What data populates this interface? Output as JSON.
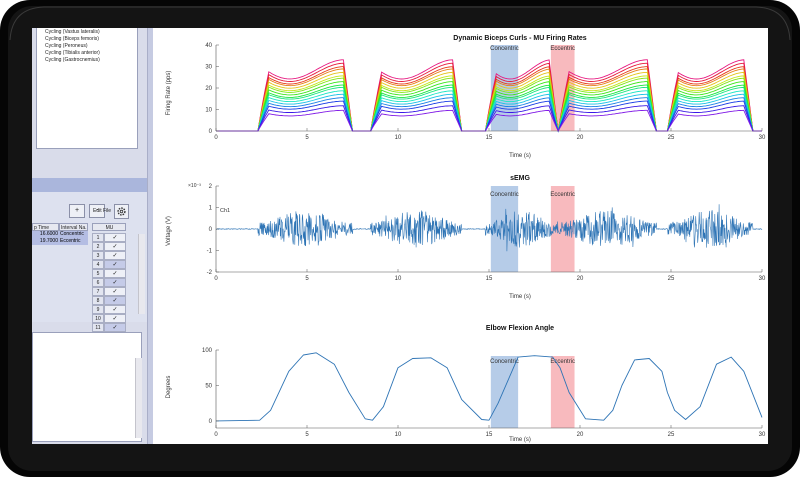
{
  "colors": {
    "frame": "#0a0a0a",
    "left_panel": "#d9dcea",
    "toolbar": "#aab6dc",
    "signal_line": "#2e74b5",
    "concentric_band": "#9dbbe0",
    "eccentric_band": "#f5a3a8"
  },
  "left_panel": {
    "list_items": [
      "Cycling (Vastus lateralis)",
      "Cycling (Biceps femoris)",
      "Cycling (Peroneus)",
      "Cycling (Tibialis anterior)",
      "Cycling (Gastrocnemius)"
    ],
    "add_label": "+",
    "remove_label": "-",
    "edit_file_label": "Edit File",
    "gear_icon": "gear-icon",
    "table": {
      "headers": [
        "p Time",
        "Interval Na..."
      ],
      "rows": [
        [
          "16.6000",
          "Concentric"
        ],
        [
          "19.7000",
          "Eccentric"
        ]
      ]
    },
    "mu_header": "MU",
    "mu_rows": [
      "1",
      "2",
      "3",
      "4",
      "5",
      "6",
      "7",
      "8",
      "9",
      "10",
      "11"
    ],
    "check_mark": "✓"
  },
  "chart_data": [
    {
      "type": "line",
      "title": "Dynamic Biceps Curls - MU Firing Rates",
      "xlabel": "Time (s)",
      "ylabel": "Firing Rate (pps)",
      "xlim": [
        0,
        30
      ],
      "ylim": [
        0,
        40
      ],
      "xticks": [
        "0",
        "5",
        "10",
        "15",
        "20",
        "25",
        "30"
      ],
      "yticks": [
        "0",
        "10",
        "20",
        "30",
        "40"
      ],
      "num_units": 16,
      "series_peak_rates": [
        31,
        29.5,
        28,
        27,
        25.5,
        24,
        23,
        21.5,
        20,
        19,
        17.5,
        16,
        14.5,
        13,
        11,
        9
      ],
      "activity_bursts": [
        [
          2.3,
          7.5
        ],
        [
          8.5,
          13.5
        ],
        [
          14.8,
          18.8
        ],
        [
          18.8,
          24.2
        ],
        [
          24.8,
          29.5
        ]
      ],
      "annotations": [
        {
          "label": "Concentric",
          "x_start": 15.1,
          "x_end": 16.6
        },
        {
          "label": "Eccentric",
          "x_start": 18.4,
          "x_end": 19.7
        }
      ]
    },
    {
      "type": "line",
      "title": "sEMG",
      "xlabel": "Time (s)",
      "ylabel": "Voltage (V)",
      "xlim": [
        0,
        30
      ],
      "ylim": [
        -2,
        2
      ],
      "scale_label": "×10⁻³",
      "xticks": [
        "0",
        "5",
        "10",
        "15",
        "20",
        "25",
        "30"
      ],
      "yticks": [
        "-2",
        "-1",
        "0",
        "1",
        "2"
      ],
      "series": [
        {
          "name": "Ch1",
          "peak_amplitude": 1.6
        }
      ],
      "activity_bursts": [
        [
          2.3,
          7.5
        ],
        [
          8.5,
          13.5
        ],
        [
          14.8,
          18.8
        ],
        [
          18.8,
          24.2
        ],
        [
          24.8,
          29.5
        ]
      ],
      "annotations": [
        {
          "label": "Concentric",
          "x_start": 15.1,
          "x_end": 16.6
        },
        {
          "label": "Eccentric",
          "x_start": 18.4,
          "x_end": 19.7
        }
      ]
    },
    {
      "type": "line",
      "title": "Elbow Flexion Angle",
      "xlabel": "Time (s)",
      "ylabel": "Degrees",
      "xlim": [
        0,
        30
      ],
      "ylim": [
        -10,
        100
      ],
      "xticks": [
        "0",
        "5",
        "10",
        "15",
        "20",
        "25",
        "30"
      ],
      "yticks": [
        "0",
        "50",
        "100"
      ],
      "x": [
        0,
        2.4,
        3.0,
        4.0,
        4.8,
        5.5,
        6.5,
        7.3,
        8.2,
        8.6,
        9.2,
        10.0,
        10.8,
        11.8,
        12.7,
        13.5,
        14.6,
        15.0,
        15.5,
        16.6,
        17.5,
        18.5,
        18.9,
        19.4,
        20.3,
        21.3,
        21.8,
        22.3,
        23.0,
        23.8,
        24.5,
        24.8,
        25.2,
        25.8,
        26.6,
        27.5,
        28.3,
        29.0,
        30.0
      ],
      "y": [
        0,
        1,
        15,
        70,
        93,
        96,
        80,
        40,
        3,
        1,
        20,
        75,
        88,
        89,
        75,
        30,
        2,
        1,
        25,
        90,
        92,
        90,
        75,
        40,
        3,
        1,
        15,
        50,
        86,
        88,
        70,
        40,
        15,
        2,
        20,
        80,
        90,
        70,
        5
      ],
      "annotations": [
        {
          "label": "Concentric",
          "x_start": 15.1,
          "x_end": 16.6
        },
        {
          "label": "Eccentric",
          "x_start": 18.4,
          "x_end": 19.7
        }
      ]
    }
  ]
}
